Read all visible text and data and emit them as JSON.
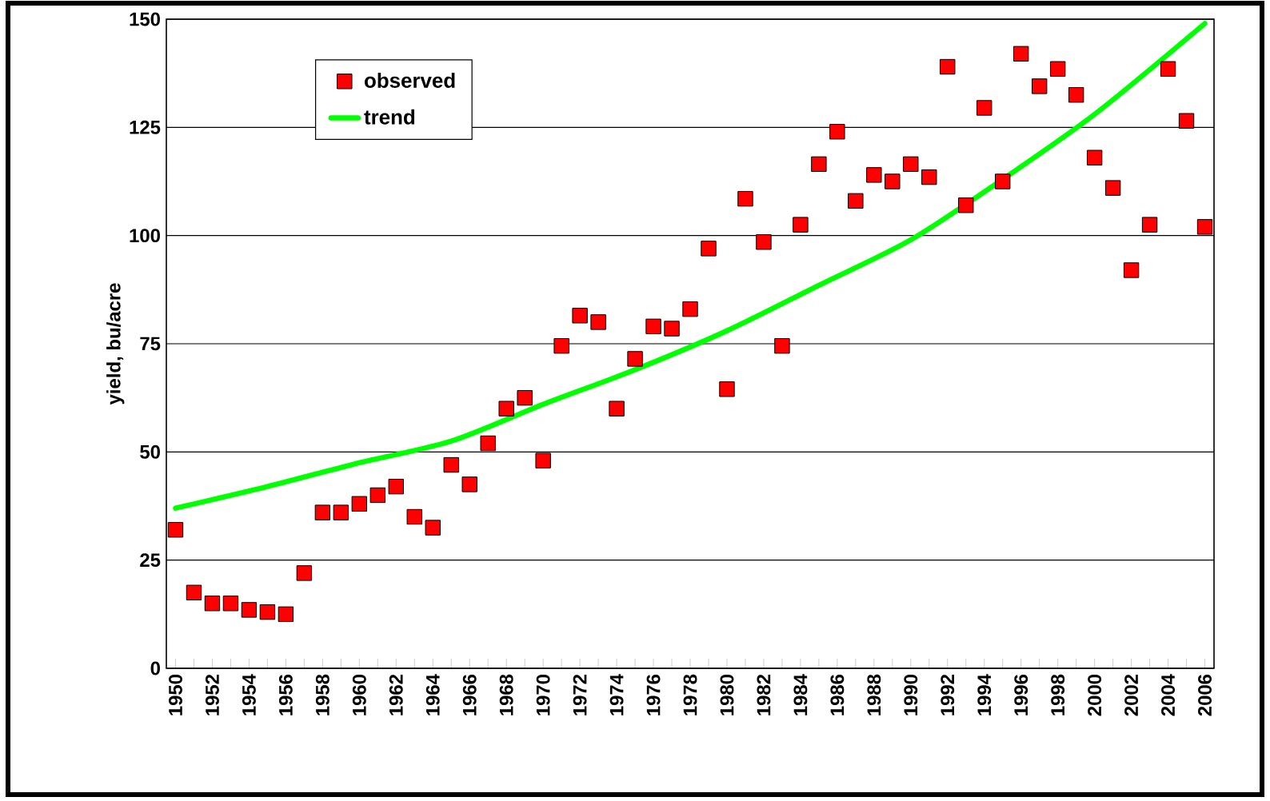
{
  "chart_data": {
    "type": "scatter",
    "ylabel": "yield, bu/acre",
    "xlim": [
      1949.5,
      2006.5
    ],
    "ylim": [
      0,
      150
    ],
    "yticks": [
      0,
      25,
      50,
      75,
      100,
      125,
      150
    ],
    "grid": "y",
    "legend": "top left",
    "xticks": [
      1950,
      {
        "value": 1951,
        "label": null
      },
      1952,
      {
        "value": 1953,
        "label": null
      },
      1954,
      {
        "value": 1955,
        "label": null
      },
      1956,
      {
        "value": 1957,
        "label": null
      },
      1958,
      {
        "value": 1959,
        "label": null
      },
      1960,
      {
        "value": 1961,
        "label": null
      },
      1962,
      {
        "value": 1963,
        "label": null
      },
      1964,
      {
        "value": 1965,
        "label": null
      },
      1966,
      {
        "value": 1967,
        "label": null
      },
      1968,
      {
        "value": 1969,
        "label": null
      },
      1970,
      {
        "value": 1971,
        "label": null
      },
      1972,
      {
        "value": 1973,
        "label": null
      },
      1974,
      {
        "value": 1975,
        "label": null
      },
      1976,
      {
        "value": 1977,
        "label": null
      },
      1978,
      {
        "value": 1979,
        "label": null
      },
      1980,
      {
        "value": 1981,
        "label": null
      },
      1982,
      {
        "value": 1983,
        "label": null
      },
      1984,
      {
        "value": 1985,
        "label": null
      },
      1986,
      {
        "value": 1987,
        "label": null
      },
      1988,
      {
        "value": 1989,
        "label": null
      },
      1990,
      {
        "value": 1991,
        "label": null
      },
      1992,
      {
        "value": 1993,
        "label": null
      },
      1994,
      {
        "value": 1995,
        "label": null
      },
      1996,
      {
        "value": 1997,
        "label": null
      },
      1998,
      {
        "value": 1999,
        "label": null
      },
      2000,
      {
        "value": 2001,
        "label": null
      },
      2002,
      {
        "value": 2003,
        "label": null
      },
      2004,
      {
        "value": 2005,
        "label": null
      },
      2006
    ],
    "series": [
      {
        "name": "observed",
        "marker": "square",
        "color": "#ff0000",
        "x": [
          1950,
          1951,
          1952,
          1953,
          1954,
          1955,
          1956,
          1957,
          1958,
          1959,
          1960,
          1961,
          1962,
          1963,
          1964,
          1965,
          1966,
          1967,
          1968,
          1969,
          1970,
          1971,
          1972,
          1973,
          1974,
          1975,
          1976,
          1977,
          1978,
          1979,
          1980,
          1981,
          1982,
          1983,
          1984,
          1985,
          1986,
          1987,
          1988,
          1989,
          1990,
          1991,
          1992,
          1993,
          1994,
          1995,
          1996,
          1997,
          1998,
          1999,
          2000,
          2001,
          2002,
          2003,
          2004,
          2005,
          2006
        ],
        "values": [
          32,
          17.5,
          15,
          15,
          13.5,
          13,
          12.5,
          22,
          36,
          36,
          38,
          40,
          42,
          35,
          32.5,
          47,
          42.5,
          52,
          60,
          62.5,
          48,
          74.5,
          81.5,
          80,
          60,
          71.5,
          79,
          78.5,
          83,
          97,
          64.5,
          108.5,
          98.5,
          74.5,
          102.5,
          116.5,
          124,
          108,
          114,
          112.5,
          116.5,
          113.5,
          139,
          107,
          129.5,
          112.5,
          142,
          134.5,
          138.5,
          132.5,
          118,
          111,
          92,
          102.5,
          138.5,
          126.5,
          102
        ]
      },
      {
        "name": "trend",
        "type": "line",
        "marker": "none",
        "color": "#00ff00",
        "x": [
          1950,
          1955,
          1960,
          1965,
          1970,
          1975,
          1980,
          1985,
          1990,
          1995,
          2000,
          2006
        ],
        "values": [
          37,
          42,
          47.5,
          52.5,
          61,
          69,
          78,
          88.5,
          99,
          113,
          128,
          149
        ]
      }
    ]
  }
}
